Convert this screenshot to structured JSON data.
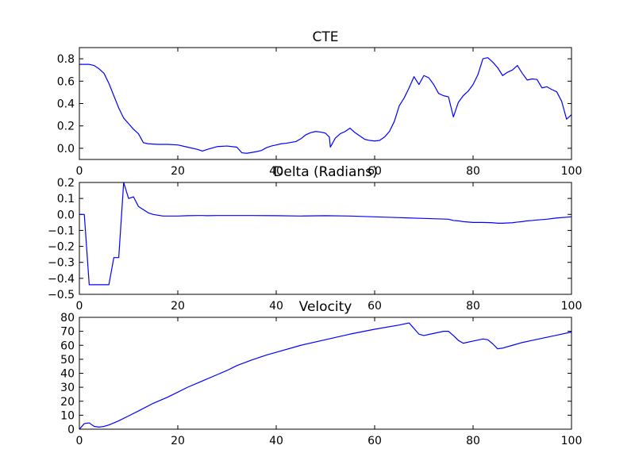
{
  "chart_data": [
    {
      "type": "line",
      "title": "CTE",
      "xlim": [
        0,
        100
      ],
      "ylim": [
        -0.1,
        0.9
      ],
      "xticks": [
        0,
        20,
        40,
        60,
        80,
        100
      ],
      "yticks": [
        0.0,
        0.2,
        0.4,
        0.6,
        0.8
      ],
      "xtick_labels": [
        "0",
        "20",
        "40",
        "60",
        "80",
        "100"
      ],
      "ytick_labels": [
        "0.0",
        "0.2",
        "0.4",
        "0.6",
        "0.8"
      ],
      "grid": false,
      "color": "#0000ff",
      "series": [
        {
          "x": [
            0,
            1,
            2,
            3,
            4,
            5,
            6,
            7,
            8,
            9,
            10,
            11,
            12,
            13,
            14,
            16,
            18,
            20,
            22,
            24,
            25,
            26,
            28,
            30,
            32,
            33,
            34,
            36,
            37,
            38,
            39,
            40,
            41,
            42,
            44,
            45,
            46,
            47,
            48,
            49,
            50,
            50.8,
            51,
            52,
            53,
            54,
            55,
            56,
            57,
            58,
            59,
            60,
            61,
            62,
            63,
            64,
            65,
            66,
            67,
            68,
            69,
            70,
            71,
            72,
            73,
            74,
            75,
            76,
            77,
            78,
            79,
            80,
            81,
            82,
            83,
            84,
            85,
            86,
            87,
            88,
            89,
            90,
            91,
            92,
            93,
            94,
            95,
            96,
            97,
            98,
            99,
            100
          ],
          "y": [
            0.75,
            0.75,
            0.75,
            0.74,
            0.71,
            0.67,
            0.58,
            0.47,
            0.36,
            0.27,
            0.22,
            0.17,
            0.13,
            0.05,
            0.04,
            0.035,
            0.035,
            0.03,
            0.01,
            -0.01,
            -0.025,
            -0.01,
            0.015,
            0.02,
            0.01,
            -0.04,
            -0.045,
            -0.03,
            -0.02,
            0.005,
            0.02,
            0.03,
            0.04,
            0.045,
            0.06,
            0.085,
            0.12,
            0.14,
            0.15,
            0.145,
            0.135,
            0.1,
            0.01,
            0.09,
            0.13,
            0.15,
            0.18,
            0.14,
            0.11,
            0.08,
            0.07,
            0.065,
            0.07,
            0.1,
            0.15,
            0.24,
            0.38,
            0.45,
            0.54,
            0.64,
            0.57,
            0.65,
            0.63,
            0.57,
            0.49,
            0.47,
            0.46,
            0.28,
            0.41,
            0.47,
            0.51,
            0.57,
            0.66,
            0.8,
            0.81,
            0.77,
            0.72,
            0.65,
            0.68,
            0.7,
            0.74,
            0.67,
            0.61,
            0.62,
            0.615,
            0.54,
            0.55,
            0.525,
            0.505,
            0.42,
            0.26,
            0.3
          ]
        }
      ]
    },
    {
      "type": "line",
      "title": "Delta (Radians)",
      "xlim": [
        0,
        100
      ],
      "ylim": [
        -0.5,
        0.2
      ],
      "xticks": [
        0,
        20,
        40,
        60,
        80,
        100
      ],
      "yticks": [
        -0.5,
        -0.4,
        -0.3,
        -0.2,
        -0.1,
        0.0,
        0.1,
        0.2
      ],
      "xtick_labels": [
        "0",
        "20",
        "40",
        "60",
        "80",
        "100"
      ],
      "ytick_labels": [
        "−0.5",
        "−0.4",
        "−0.3",
        "−0.2",
        "−0.1",
        "0.0",
        "0.1",
        "0.2"
      ],
      "grid": false,
      "color": "#0000ff",
      "series": [
        {
          "x": [
            0,
            1,
            2,
            3,
            4,
            5,
            6,
            7,
            8,
            9,
            10,
            11,
            12,
            13,
            14,
            15,
            16,
            17,
            18,
            20,
            22,
            24,
            25,
            26,
            28,
            30,
            35,
            40,
            45,
            50,
            55,
            60,
            65,
            70,
            75,
            76,
            77,
            78,
            80,
            82,
            84,
            85,
            86,
            88,
            89,
            90,
            91,
            92,
            93,
            95,
            97,
            100
          ],
          "y": [
            0.0,
            0.0,
            -0.44,
            -0.44,
            -0.44,
            -0.44,
            -0.44,
            -0.27,
            -0.27,
            0.2,
            0.1,
            0.11,
            0.05,
            0.03,
            0.01,
            0.0,
            -0.005,
            -0.01,
            -0.01,
            -0.01,
            -0.008,
            -0.007,
            -0.007,
            -0.008,
            -0.007,
            -0.007,
            -0.007,
            -0.008,
            -0.01,
            -0.008,
            -0.01,
            -0.015,
            -0.02,
            -0.025,
            -0.03,
            -0.038,
            -0.04,
            -0.045,
            -0.05,
            -0.05,
            -0.052,
            -0.055,
            -0.055,
            -0.052,
            -0.048,
            -0.045,
            -0.04,
            -0.038,
            -0.035,
            -0.03,
            -0.022,
            -0.015
          ]
        }
      ]
    },
    {
      "type": "line",
      "title": "Velocity",
      "xlim": [
        0,
        100
      ],
      "ylim": [
        0,
        80
      ],
      "xticks": [
        0,
        20,
        40,
        60,
        80,
        100
      ],
      "yticks": [
        0,
        10,
        20,
        30,
        40,
        50,
        60,
        70,
        80
      ],
      "xtick_labels": [
        "0",
        "20",
        "40",
        "60",
        "80",
        "100"
      ],
      "ytick_labels": [
        "0",
        "10",
        "20",
        "30",
        "40",
        "50",
        "60",
        "70",
        "80"
      ],
      "grid": false,
      "color": "#0000ff",
      "series": [
        {
          "x": [
            0,
            1,
            2,
            3,
            4,
            5,
            6,
            8,
            10,
            12,
            15,
            18,
            20,
            22,
            25,
            28,
            30,
            32,
            35,
            38,
            40,
            45,
            50,
            55,
            60,
            65,
            67,
            68,
            69,
            70,
            72,
            74,
            75,
            76,
            77,
            78,
            80,
            82,
            83,
            84,
            85,
            86,
            88,
            90,
            92,
            94,
            96,
            98,
            100
          ],
          "y": [
            0,
            4,
            4.5,
            2,
            1.5,
            2,
            3,
            6,
            9.5,
            13,
            18.5,
            23,
            26.5,
            30,
            34.5,
            39,
            42,
            45.5,
            49.5,
            53,
            55,
            60,
            64,
            68,
            71.5,
            74.5,
            76,
            72,
            68,
            67,
            68.5,
            70,
            70,
            67,
            63.5,
            61.5,
            63,
            64.5,
            64,
            61,
            57.5,
            58,
            60,
            62,
            63.5,
            65,
            66.5,
            68,
            69.5
          ]
        }
      ]
    }
  ]
}
